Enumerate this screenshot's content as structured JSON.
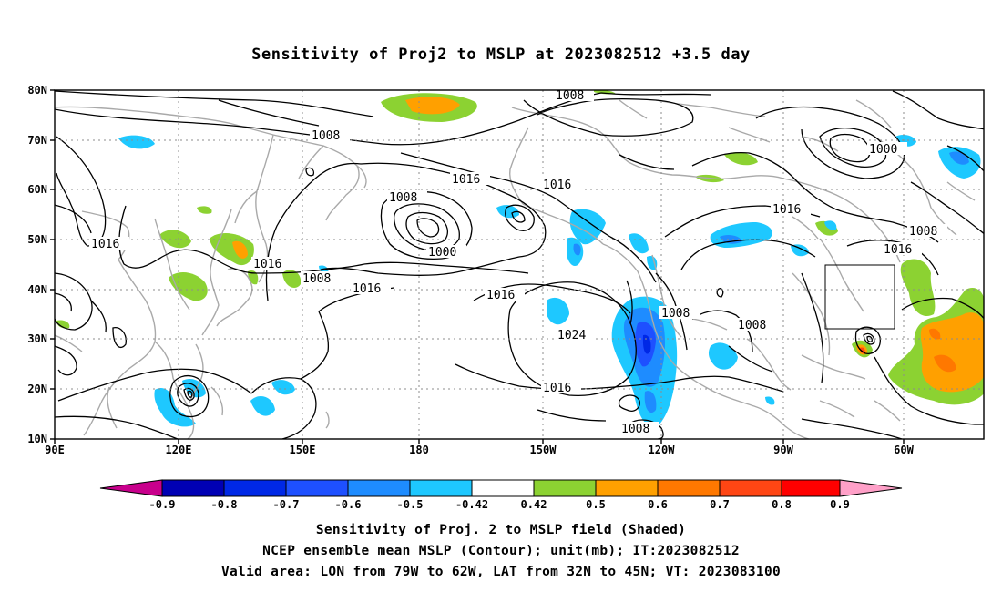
{
  "title": "Sensitivity of Proj2 to MSLP at 2023082512 +3.5 day",
  "lat_labels": [
    "80N",
    "70N",
    "60N",
    "50N",
    "40N",
    "30N",
    "20N",
    "10N"
  ],
  "lon_labels": [
    "90E",
    "120E",
    "150E",
    "180",
    "150W",
    "120W",
    "90W",
    "60W"
  ],
  "contour_labels": [
    "1008",
    "1000",
    "1008",
    "1016",
    "1016",
    "1008",
    "1016",
    "1016",
    "1000",
    "1008",
    "1016",
    "1008",
    "1016",
    "1016",
    "1016",
    "1024",
    "1008",
    "1008",
    "1016",
    "1008",
    "1008",
    "1016",
    "1016"
  ],
  "colorbar": {
    "labels": [
      "-0.9",
      "-0.8",
      "-0.7",
      "-0.6",
      "-0.5",
      "-0.42",
      "0.42",
      "0.5",
      "0.6",
      "0.7",
      "0.8",
      "0.9"
    ],
    "colors": [
      "#c8008c",
      "#0000b4",
      "#0028e6",
      "#1e50ff",
      "#1e8cff",
      "#1ec8ff",
      "#ffffff",
      "#8cd232",
      "#ffa000",
      "#ff7800",
      "#ff4614",
      "#ff0000",
      "#ffa0c8"
    ]
  },
  "caption": {
    "line1": "Sensitivity of Proj. 2 to MSLP field (Shaded)",
    "line2": "NCEP ensemble mean MSLP (Contour); unit(mb); IT:2023082512",
    "line3": "Valid area: LON from 79W to 62W, LAT from 32N to 45N; VT: 2023083100"
  }
}
